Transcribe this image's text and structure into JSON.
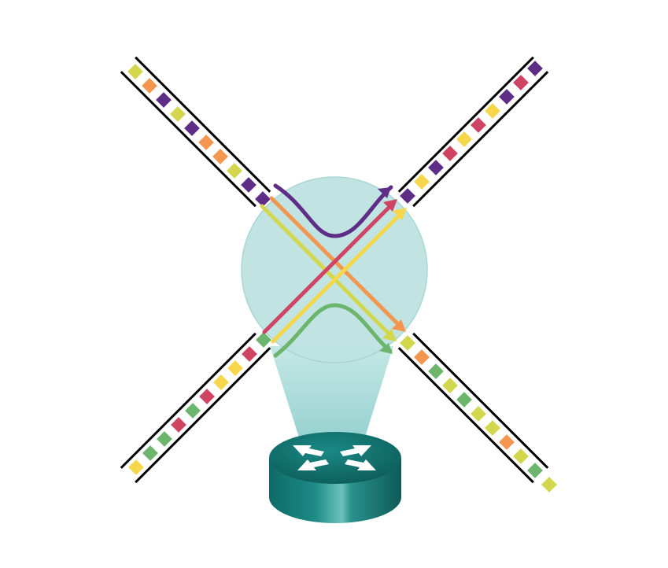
{
  "palette": {
    "green": "#6bb56d",
    "red": "#cf4462",
    "yellow": "#f6d74b",
    "lime": "#d2d74e",
    "orange": "#f3964f",
    "purple": "#5e2d86",
    "bubble_fill": "#bfe3e2",
    "beam_top": "#c2e6e4",
    "beam_bottom": "#8fcfcd",
    "router_body": "#157c78",
    "router_top": "#0f5f5d",
    "router_highlight": "#5fb7b3",
    "rail": "#000000"
  },
  "links": {
    "top_left": [
      "lime",
      "orange",
      "purple",
      "lime",
      "purple",
      "orange",
      "orange",
      "lime",
      "purple",
      "purple"
    ],
    "top_right": [
      "purple",
      "yellow",
      "purple",
      "red",
      "yellow",
      "red",
      "yellow",
      "purple",
      "red",
      "purple"
    ],
    "bottom_left": [
      "yellow",
      "green",
      "green",
      "red",
      "green",
      "red",
      "yellow",
      "yellow",
      "red",
      "green"
    ],
    "bottom_right": [
      "lime",
      "orange",
      "green",
      "lime",
      "green",
      "lime",
      "lime",
      "orange",
      "lime",
      "green",
      "lime"
    ]
  },
  "flows": [
    {
      "color": "purple",
      "from": "top_left",
      "to": "top_right",
      "shape": "curve"
    },
    {
      "color": "orange",
      "from": "top_left",
      "to": "bottom_right",
      "shape": "straight"
    },
    {
      "color": "lime",
      "from": "top_left",
      "to": "bottom_right",
      "shape": "straight"
    },
    {
      "color": "red",
      "from": "bottom_left",
      "to": "top_right",
      "shape": "straight"
    },
    {
      "color": "yellow",
      "from": "bottom_left",
      "to": "top_right",
      "shape": "straight"
    },
    {
      "color": "green",
      "from": "bottom_left",
      "to": "bottom_right",
      "shape": "curve"
    }
  ],
  "device": {
    "icon": "router-icon"
  }
}
